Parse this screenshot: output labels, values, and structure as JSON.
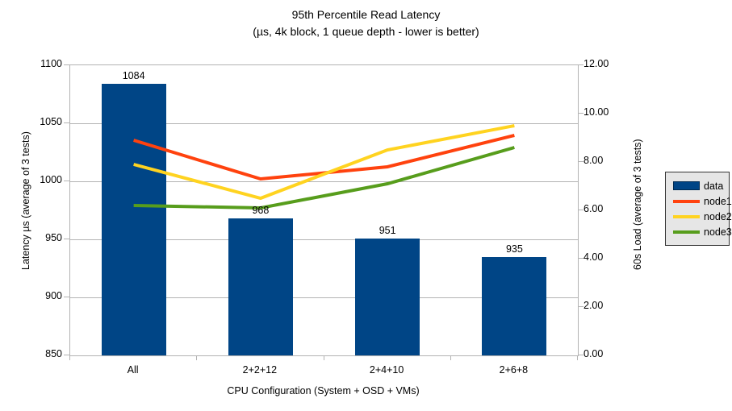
{
  "chart_data": {
    "type": "combo-bar-line",
    "title": "95th Percentile Read Latency",
    "subtitle": "(µs, 4k block, 1 queue depth - lower is better)",
    "xlabel": "CPU Configuration (System + OSD + VMs)",
    "categories": [
      "All",
      "2+2+12",
      "2+4+10",
      "2+6+8"
    ],
    "bar_series": {
      "name": "data",
      "color": "#004586",
      "axis": "left",
      "values": [
        1084,
        968,
        951,
        935
      ],
      "data_labels": [
        "1084",
        "968",
        "951",
        "935"
      ]
    },
    "line_series": [
      {
        "name": "node1",
        "color": "#ff420e",
        "axis": "right",
        "values": [
          8.9,
          7.3,
          7.8,
          9.1
        ]
      },
      {
        "name": "node2",
        "color": "#ffd320",
        "axis": "right",
        "values": [
          7.9,
          6.5,
          8.5,
          9.5
        ]
      },
      {
        "name": "node3",
        "color": "#579d1c",
        "axis": "right",
        "values": [
          6.2,
          6.1,
          7.1,
          8.6
        ]
      }
    ],
    "left_axis": {
      "label": "Latency µs (average of 3 tests)",
      "min": 850,
      "max": 1100,
      "step": 50,
      "ticks": [
        "850",
        "900",
        "950",
        "1000",
        "1050",
        "1100"
      ]
    },
    "right_axis": {
      "label": "60s Load (average of 3 tests)",
      "min": 0,
      "max": 12,
      "step": 2,
      "ticks": [
        "0.00",
        "2.00",
        "4.00",
        "6.00",
        "8.00",
        "10.00",
        "12.00"
      ]
    },
    "legend": {
      "position": "right",
      "entries": [
        {
          "label": "data",
          "type": "bar",
          "color": "#004586"
        },
        {
          "label": "node1",
          "type": "line",
          "color": "#ff420e"
        },
        {
          "label": "node2",
          "type": "line",
          "color": "#ffd320"
        },
        {
          "label": "node3",
          "type": "line",
          "color": "#579d1c"
        }
      ]
    },
    "grid": "horizontal",
    "colors": {
      "background": "#ffffff",
      "grid": "#b3b3b3",
      "axis": "#b3b3b3",
      "text": "#000000",
      "legend_bg": "#e6e6e6"
    }
  }
}
